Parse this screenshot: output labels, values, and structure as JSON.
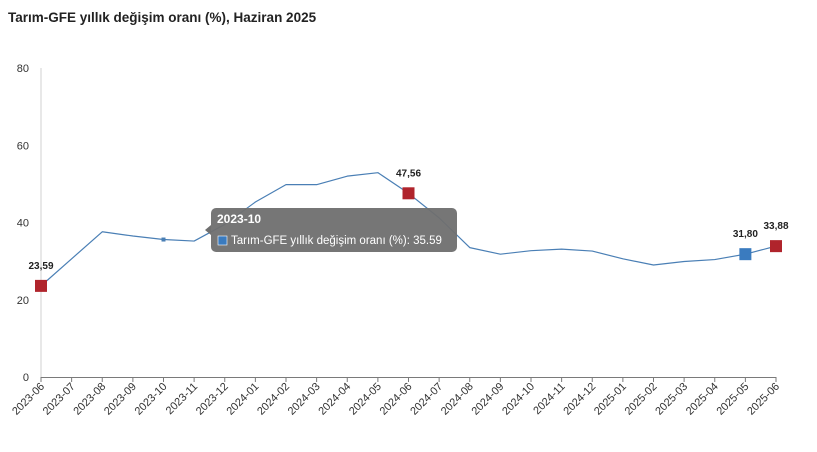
{
  "title": "Tarım-GFE yıllık değişim oranı (%), Haziran 2025",
  "colors": {
    "line": "#4a7fb5",
    "marker_red": "#b0242c",
    "marker_blue": "#3a7bbf",
    "axis": "#7a7a7a",
    "tooltip_bg": "#6f6f6f"
  },
  "chart_data": {
    "type": "line",
    "title": "Tarım-GFE yıllık değişim oranı (%), Haziran 2025",
    "xlabel": "",
    "ylabel": "",
    "ylim": [
      0,
      80
    ],
    "yticks": [
      "0",
      "20",
      "40",
      "60",
      "80"
    ],
    "grid": false,
    "categories": [
      "2023-06",
      "2023-07",
      "2023-08",
      "2023-09",
      "2023-10",
      "2023-11",
      "2023-12",
      "2024-01",
      "2024-02",
      "2024-03",
      "2024-04",
      "2024-05",
      "2024-06",
      "2024-07",
      "2024-08",
      "2024-09",
      "2024-10",
      "2024-11",
      "2024-12",
      "2025-01",
      "2025-02",
      "2025-03",
      "2025-04",
      "2025-05",
      "2025-06"
    ],
    "series": [
      {
        "name": "Tarım-GFE yıllık değişim oranı (%)",
        "values": [
          23.59,
          30.6,
          37.6,
          36.5,
          35.59,
          35.2,
          39.5,
          45.3,
          49.8,
          49.8,
          52.0,
          52.9,
          47.56,
          41.2,
          33.5,
          31.8,
          32.7,
          33.1,
          32.6,
          30.6,
          29.0,
          29.9,
          30.4,
          31.8,
          33.88
        ]
      }
    ],
    "data_labels": [
      {
        "category": "2023-06",
        "text": "23,59",
        "marker": "red"
      },
      {
        "category": "2024-06",
        "text": "47,56",
        "marker": "red"
      },
      {
        "category": "2025-05",
        "text": "31,80",
        "marker": "blue"
      },
      {
        "category": "2025-06",
        "text": "33,88",
        "marker": "red"
      }
    ],
    "tooltip": {
      "category": "2023-10",
      "title": "2023-10",
      "body": "Tarım-GFE yıllık değişim oranı (%): 35.59"
    }
  }
}
